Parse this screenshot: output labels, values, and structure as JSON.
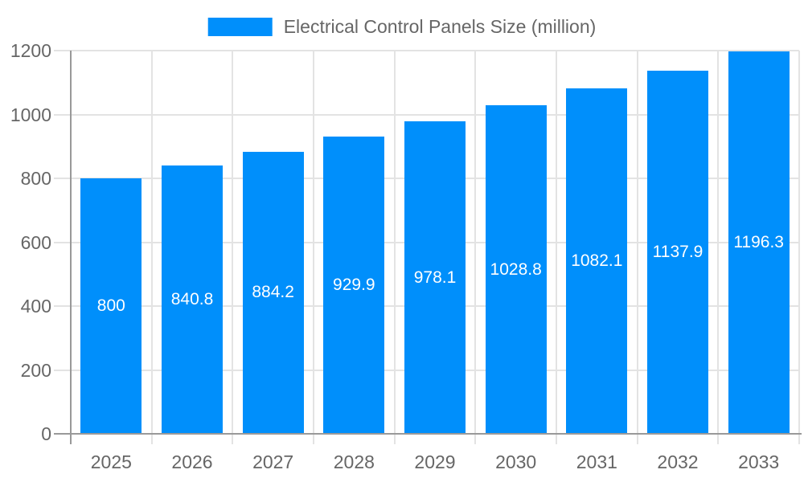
{
  "chart_data": {
    "type": "bar",
    "title": "Electrical Control Panels Size (million)",
    "legend_entries": [
      "Electrical Control Panels Size (million)"
    ],
    "legend_position": "top",
    "categories": [
      "2025",
      "2026",
      "2027",
      "2028",
      "2029",
      "2030",
      "2031",
      "2032",
      "2033"
    ],
    "series": [
      {
        "name": "Electrical Control Panels Size (million)",
        "values": [
          800,
          840.8,
          884.2,
          929.9,
          978.1,
          1028.8,
          1082.1,
          1137.9,
          1196.3
        ],
        "value_labels": [
          "800",
          "840.8",
          "884.2",
          "929.9",
          "978.1",
          "1028.8",
          "1082.1",
          "1137.9",
          "1196.3"
        ]
      }
    ],
    "xlabel": "",
    "ylabel": "",
    "ylim": [
      0,
      1200
    ],
    "y_ticks": [
      0,
      200,
      400,
      600,
      800,
      1000,
      1200
    ],
    "grid": true,
    "colors": {
      "bar": "#008FFB",
      "value_label": "#ffffff",
      "axis_text": "#666666",
      "gridline": "#e3e3e3",
      "axis_line": "#999999",
      "background": "#ffffff"
    }
  }
}
